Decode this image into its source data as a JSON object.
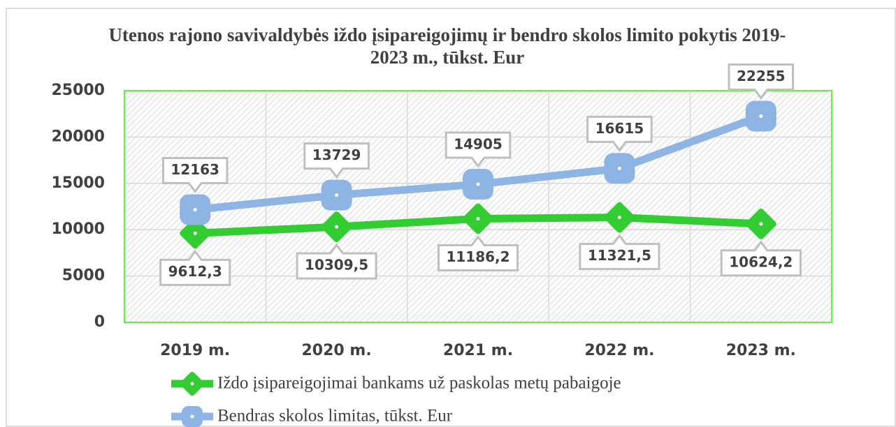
{
  "chart_data": {
    "type": "line",
    "title": "Utenos rajono savivaldybės iždo įsipareigojimų ir bendro skolos limito pokytis 2019-2023 m., tūkst. Eur",
    "categories": [
      "2019 m.",
      "2020 m.",
      "2021 m.",
      "2022 m.",
      "2023 m."
    ],
    "series": [
      {
        "name": "Iždo įsipareigojimai bankams už paskolas metų pabaigoje",
        "color": "#33cc33",
        "marker": "diamond",
        "values": [
          9612.3,
          10309.5,
          11186.2,
          11321.5,
          10624.2
        ],
        "value_labels": [
          "9612,3",
          "10309,5",
          "11186,2",
          "11321,5",
          "10624,2"
        ]
      },
      {
        "name": "Bendras skolos limitas, tūkst. Eur",
        "color": "#8eb4e3",
        "marker": "square",
        "values": [
          12163,
          13729,
          14905,
          16615,
          22255
        ]
      }
    ],
    "ylim": [
      0,
      25000
    ],
    "yticks": [
      0,
      5000,
      10000,
      15000,
      20000,
      25000
    ],
    "grid": true,
    "legend": "bottom-left"
  }
}
